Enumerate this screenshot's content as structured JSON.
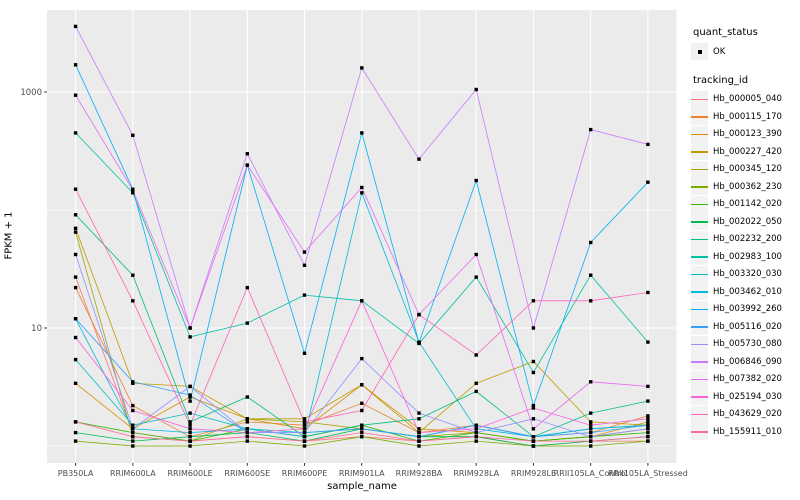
{
  "figure": {
    "y_axis": {
      "title": "FPKM + 1"
    },
    "x_axis": {
      "title": "sample_name"
    },
    "legend": {
      "quant_status": {
        "title": "quant_status",
        "items": [
          {
            "label": "OK"
          }
        ]
      },
      "tracking_id": {
        "title": "tracking_id"
      }
    },
    "colors": {
      "panel_bg": "#EBEBEB",
      "grid": "#FFFFFF",
      "point": "#000000",
      "tick_text": "#4D4D4D",
      "tick_mark": "#333333",
      "legend_key_bg": "#F2F2F2"
    }
  },
  "chart_data": {
    "type": "line",
    "title": "",
    "xlabel": "sample_name",
    "ylabel": "FPKM + 1",
    "y_scale": "log10",
    "ylim": [
      1,
      5000
    ],
    "y_major_ticks": [
      10,
      1000
    ],
    "y_major_tick_labels": [
      "10",
      "1000"
    ],
    "y_minor_gridlines": [
      1,
      100
    ],
    "grid": "on",
    "legend_position": "right",
    "point_color": "#000000",
    "categories": [
      "PB350LA",
      "RRIM600LA",
      "RRIM600LE",
      "RRIM600SE",
      "RRIM600PE",
      "RRIM901LA",
      "RRIM928BA",
      "RRIM928LA",
      "RRIM928LE",
      "RRII105LA_Control",
      "RRII105LA_Stressed"
    ],
    "series": [
      {
        "name": "Hb_000005_040",
        "color": "#F8766D",
        "values": [
          27,
          1.3,
          1.1,
          1.2,
          1.1,
          1.2,
          1.1,
          1.2,
          1.0,
          1.1,
          1.1
        ]
      },
      {
        "name": "Hb_000115_170",
        "color": "#EA8331",
        "values": [
          22,
          2.2,
          1.2,
          1.6,
          1.5,
          2.3,
          1.3,
          1.5,
          1.2,
          1.3,
          1.8
        ]
      },
      {
        "name": "Hb_000123_390",
        "color": "#D89000",
        "values": [
          3.4,
          1.4,
          2.6,
          1.7,
          1.4,
          3.3,
          1.4,
          1.3,
          1.1,
          1.2,
          1.6
        ]
      },
      {
        "name": "Hb_000227_420",
        "color": "#C09B00",
        "values": [
          70,
          3.4,
          3.2,
          1.7,
          1.7,
          3.3,
          1.3,
          3.4,
          5.2,
          1.6,
          1.5
        ]
      },
      {
        "name": "Hb_000345_120",
        "color": "#A3A500",
        "values": [
          65,
          1.2,
          1.1,
          1.7,
          1.6,
          1.4,
          1.2,
          1.3,
          1.1,
          1.2,
          1.4
        ]
      },
      {
        "name": "Hb_000362_230",
        "color": "#7CAE00",
        "values": [
          1.1,
          1.0,
          1.0,
          1.1,
          1.0,
          1.2,
          1.0,
          1.1,
          1.0,
          1.0,
          1.1
        ]
      },
      {
        "name": "Hb_001142_020",
        "color": "#39B600",
        "values": [
          1.6,
          1.3,
          1.1,
          1.4,
          1.2,
          1.5,
          1.1,
          1.3,
          1.1,
          1.2,
          1.3
        ]
      },
      {
        "name": "Hb_002022_050",
        "color": "#00BB4E",
        "values": [
          1.3,
          1.1,
          1.2,
          1.3,
          1.1,
          1.4,
          1.2,
          1.2,
          1.0,
          1.1,
          1.2
        ]
      },
      {
        "name": "Hb_002232_200",
        "color": "#00BF7D",
        "values": [
          91,
          28,
          1.6,
          2.6,
          1.2,
          1.5,
          1.7,
          2.9,
          1.2,
          1.9,
          2.4
        ]
      },
      {
        "name": "Hb_002983_100",
        "color": "#00C1A3",
        "values": [
          450,
          140,
          8.4,
          11,
          19,
          17,
          7.4,
          27,
          4.2,
          28,
          7.6
        ]
      },
      {
        "name": "Hb_003320_030",
        "color": "#00BFC4",
        "values": [
          5.4,
          1.5,
          1.9,
          1.4,
          1.3,
          1.4,
          1.2,
          1.5,
          1.2,
          1.4,
          1.5
        ]
      },
      {
        "name": "Hb_003462_010",
        "color": "#00BAE0",
        "values": [
          12,
          1.4,
          1.3,
          1.4,
          1.2,
          140,
          7.6,
          1.4,
          1.2,
          1.4,
          1.5
        ]
      },
      {
        "name": "Hb_003992_260",
        "color": "#00B0F6",
        "values": [
          1700,
          150,
          2.4,
          240,
          6.1,
          450,
          7.5,
          178,
          2.2,
          53,
          172
        ]
      },
      {
        "name": "Hb_005116_020",
        "color": "#35A2FF",
        "values": [
          12,
          3.5,
          2.7,
          1.3,
          1.3,
          1.4,
          1.2,
          1.5,
          1.2,
          1.3,
          1.5
        ]
      },
      {
        "name": "Hb_005730_080",
        "color": "#9590FF",
        "values": [
          42,
          1.4,
          3.2,
          1.3,
          1.3,
          5.5,
          1.9,
          1.3,
          1.7,
          1.2,
          1.4
        ]
      },
      {
        "name": "Hb_006846_090",
        "color": "#C77CFF",
        "values": [
          3600,
          430,
          10,
          300,
          34,
          1600,
          270,
          1050,
          10,
          480,
          360
        ]
      },
      {
        "name": "Hb_007382_020",
        "color": "#E76BF3",
        "values": [
          940,
          148,
          10,
          240,
          44,
          155,
          13,
          42,
          1.4,
          3.5,
          3.2
        ]
      },
      {
        "name": "Hb_025194_030",
        "color": "#FA62DB",
        "values": [
          8.3,
          2.0,
          1.4,
          1.3,
          1.4,
          17,
          1.3,
          1.4,
          2.1,
          1.5,
          1.7
        ]
      },
      {
        "name": "Hb_043629_020",
        "color": "#FF62BC",
        "values": [
          150,
          17,
          1.5,
          22,
          1.6,
          2.0,
          13,
          5.9,
          17,
          17,
          20
        ]
      },
      {
        "name": "Hb_155911_010",
        "color": "#FF6A98",
        "values": [
          1.6,
          1.2,
          1.1,
          1.2,
          1.1,
          1.3,
          1.1,
          1.2,
          1.1,
          1.1,
          1.2
        ]
      }
    ]
  }
}
